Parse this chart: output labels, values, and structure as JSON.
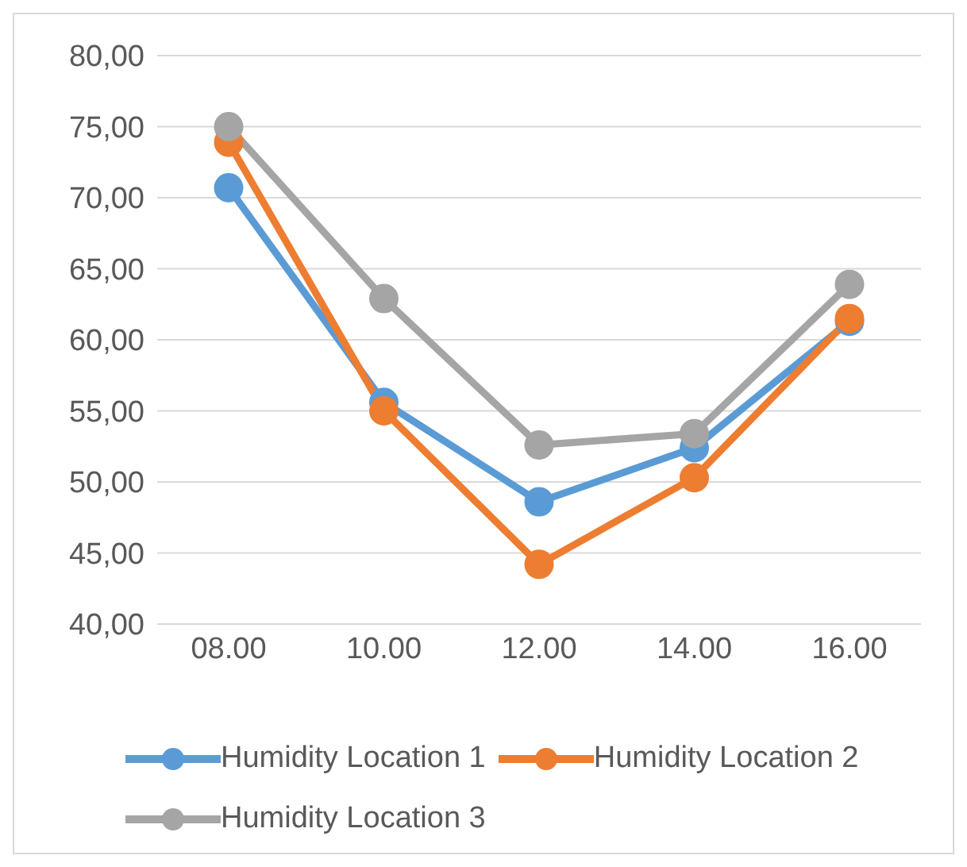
{
  "chart_data": {
    "type": "line",
    "categories": [
      "08.00",
      "10.00",
      "12.00",
      "14.00",
      "16.00"
    ],
    "series": [
      {
        "name": "Humidity Location 1",
        "color": "#5b9bd5",
        "values": [
          70.7,
          55.6,
          48.6,
          52.4,
          61.3
        ]
      },
      {
        "name": "Humidity Location 2",
        "color": "#ed7d31",
        "values": [
          73.9,
          55.0,
          44.2,
          50.3,
          61.5
        ]
      },
      {
        "name": "Humidity Location 3",
        "color": "#a5a5a5",
        "values": [
          75.0,
          62.9,
          52.6,
          53.4,
          63.9
        ]
      }
    ],
    "ylim": [
      40,
      80
    ],
    "yticks": [
      {
        "value": 40,
        "label": "40,00"
      },
      {
        "value": 45,
        "label": "45,00"
      },
      {
        "value": 50,
        "label": "50,00"
      },
      {
        "value": 55,
        "label": "55,00"
      },
      {
        "value": 60,
        "label": "60,00"
      },
      {
        "value": 65,
        "label": "65,00"
      },
      {
        "value": 70,
        "label": "70,00"
      },
      {
        "value": 75,
        "label": "75,00"
      },
      {
        "value": 80,
        "label": "80,00"
      }
    ],
    "grid": "y",
    "legend": "bottom",
    "marker": "circle",
    "line_style": "solid"
  }
}
